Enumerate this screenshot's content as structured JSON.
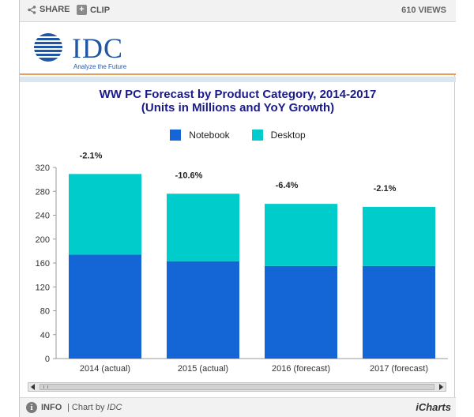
{
  "toolbar": {
    "share_label": "SHARE",
    "clip_label": "CLIP",
    "views_text": "610 VIEWS"
  },
  "logo": {
    "text": "IDC",
    "tagline": "Analyze the Future"
  },
  "footer": {
    "info_label": "INFO",
    "credit_prefix": "| Chart by ",
    "credit_name": "IDC",
    "brand": "iCharts"
  },
  "colors": {
    "notebook": "#1466d6",
    "desktop": "#00cccc"
  },
  "chart_data": {
    "type": "bar",
    "stacked": true,
    "title": "WW PC Forecast by Product Category, 2014-2017",
    "subtitle": "(Units in Millions and YoY Growth)",
    "categories": [
      "2014 (actual)",
      "2015 (actual)",
      "2016 (forecast)",
      "2017 (forecast)"
    ],
    "series": [
      {
        "name": "Notebook",
        "values": [
          174,
          163,
          155,
          155
        ]
      },
      {
        "name": "Desktop",
        "values": [
          135,
          113,
          104,
          99
        ]
      }
    ],
    "annotations": [
      "-2.1%",
      "-10.6%",
      "-6.4%",
      "-2.1%"
    ],
    "ylim": [
      0,
      320
    ],
    "yticks": [
      0,
      40,
      80,
      120,
      160,
      200,
      240,
      280,
      320
    ],
    "legend_position": "top",
    "grid": false
  }
}
